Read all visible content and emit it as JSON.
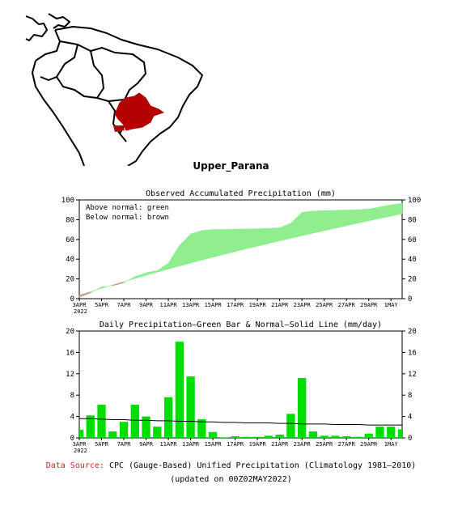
{
  "region": "Upper_Parana",
  "map": {
    "highlight_color": "#b40000",
    "outline_color": "#000000"
  },
  "charts": [
    {
      "type": "area",
      "title": "Observed Accumulated Precipitation (mm)",
      "annotations": [
        "Above normal: green",
        "Below normal: brown"
      ],
      "ylim": [
        0,
        100
      ],
      "yticks": [
        0,
        20,
        40,
        60,
        80,
        100
      ],
      "x_tick_labels": [
        "3APR",
        "5APR",
        "7APR",
        "9APR",
        "11APR",
        "13APR",
        "15APR",
        "17APR",
        "19APR",
        "21APR",
        "23APR",
        "25APR",
        "27APR",
        "29APR",
        "1MAY"
      ],
      "year_label": "2022",
      "above_color": "#90ee90",
      "below_color": "#c49a8a",
      "days": [
        0,
        1,
        2,
        3,
        4,
        5,
        6,
        7,
        8,
        9,
        10,
        11,
        12,
        13,
        14,
        15,
        16,
        17,
        18,
        19,
        20,
        21,
        22,
        23,
        24,
        25,
        26,
        27,
        28,
        29
      ],
      "observed": [
        1.5,
        5.7,
        11.9,
        13.1,
        16.1,
        22.3,
        26.3,
        28.4,
        36.0,
        54.0,
        65.5,
        69.0,
        70.1,
        70.1,
        70.4,
        70.6,
        70.8,
        71.2,
        71.8,
        76.3,
        87.5,
        88.7,
        89.1,
        89.5,
        89.8,
        90.0,
        90.8,
        92.9,
        95.0,
        96.6
      ],
      "normal": [
        3.4,
        7.0,
        10.4,
        13.8,
        17.1,
        20.4,
        23.6,
        26.8,
        29.9,
        33.0,
        36.0,
        39.0,
        41.9,
        44.8,
        47.6,
        50.4,
        53.1,
        55.8,
        58.5,
        61.1,
        63.7,
        66.3,
        68.8,
        71.3,
        73.8,
        76.3,
        78.8,
        81.2,
        83.6,
        86.0
      ]
    },
    {
      "type": "bar",
      "title": "Daily Precipitation—Green Bar & Normal—Solid Line (mm/day)",
      "ylim": [
        0,
        20
      ],
      "yticks": [
        0,
        4,
        8,
        12,
        16,
        20
      ],
      "x_tick_labels": [
        "3APR",
        "5APR",
        "7APR",
        "9APR",
        "11APR",
        "13APR",
        "15APR",
        "17APR",
        "19APR",
        "21APR",
        "23APR",
        "25APR",
        "27APR",
        "29APR",
        "1MAY"
      ],
      "year_label": "2022",
      "bar_color": "#00dd00",
      "line_color": "#000000",
      "days": [
        0,
        1,
        2,
        3,
        4,
        5,
        6,
        7,
        8,
        9,
        10,
        11,
        12,
        13,
        14,
        15,
        16,
        17,
        18,
        19,
        20,
        21,
        22,
        23,
        24,
        25,
        26,
        27,
        28,
        29
      ],
      "daily": [
        1.5,
        4.2,
        6.2,
        1.2,
        3.0,
        6.2,
        4.0,
        2.1,
        7.6,
        18.0,
        11.5,
        3.5,
        1.1,
        0.1,
        0.3,
        0.2,
        0.2,
        0.4,
        0.6,
        4.5,
        11.2,
        1.2,
        0.4,
        0.4,
        0.3,
        0.2,
        0.8,
        2.1,
        2.1,
        1.6
      ],
      "normal": [
        3.6,
        3.6,
        3.5,
        3.4,
        3.4,
        3.3,
        3.3,
        3.2,
        3.2,
        3.1,
        3.1,
        3.0,
        3.0,
        2.9,
        2.9,
        2.8,
        2.8,
        2.8,
        2.7,
        2.7,
        2.6,
        2.6,
        2.6,
        2.5,
        2.5,
        2.5,
        2.4,
        2.4,
        2.4,
        2.4
      ]
    }
  ],
  "footer": {
    "source_label": "Data Source:",
    "source_text": "CPC (Gauge-Based) Unified Precipitation (Climatology 1981—2010)",
    "updated": "(updated on 00Z02MAY2022)"
  }
}
